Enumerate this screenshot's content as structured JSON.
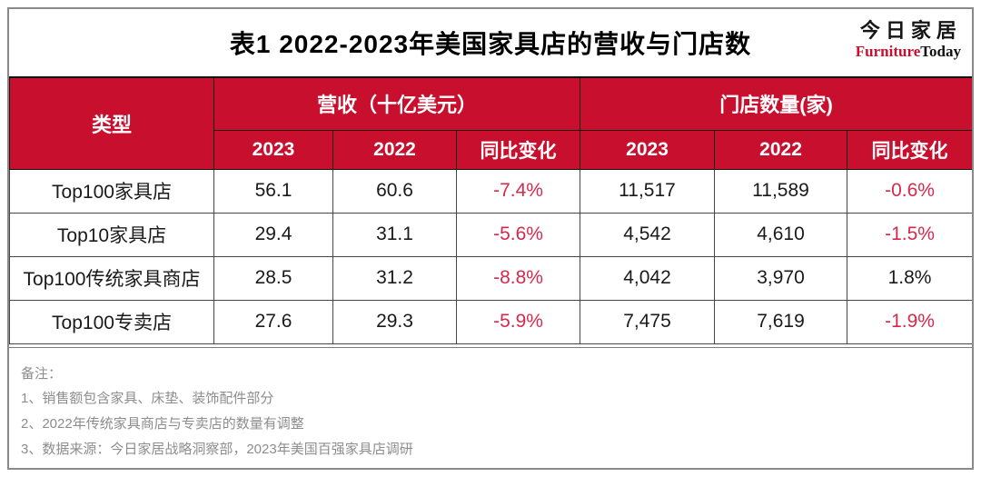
{
  "header": {
    "title": "表1  2022-2023年美国家具店的营收与门店数",
    "logo": {
      "chinese": "今日家居",
      "english_red": "Furniture",
      "english_black": "Today"
    }
  },
  "table": {
    "type_header": "类型",
    "groups": [
      {
        "label": "营收（十亿美元）"
      },
      {
        "label": "门店数量(家)"
      }
    ],
    "subheaders": [
      "2023",
      "2022",
      "同比变化",
      "2023",
      "2022",
      "同比变化"
    ],
    "rows": [
      {
        "type": "Top100家具店",
        "revenue_2023": "56.1",
        "revenue_2022": "60.6",
        "revenue_change": "-7.4%",
        "stores_2023": "11,517",
        "stores_2022": "11,589",
        "stores_change": "-0.6%"
      },
      {
        "type": "Top10家具店",
        "revenue_2023": "29.4",
        "revenue_2022": "31.1",
        "revenue_change": "-5.6%",
        "stores_2023": "4,542",
        "stores_2022": "4,610",
        "stores_change": "-1.5%"
      },
      {
        "type": "Top100传统家具商店",
        "revenue_2023": "28.5",
        "revenue_2022": "31.2",
        "revenue_change": "-8.8%",
        "stores_2023": "4,042",
        "stores_2022": "3,970",
        "stores_change": "1.8%"
      },
      {
        "type": "Top100专卖店",
        "revenue_2023": "27.6",
        "revenue_2022": "29.3",
        "revenue_change": "-5.9%",
        "stores_2023": "7,475",
        "stores_2022": "7,619",
        "stores_change": "-1.9%"
      }
    ]
  },
  "notes": {
    "label": "备注：",
    "items": [
      "1、销售额包含家具、床垫、装饰配件部分",
      "2、2022年传统家具商店与专卖店的数量有调整",
      "3、数据来源：今日家居战略洞察部，2023年美国百强家具店调研"
    ]
  },
  "colors": {
    "header_red": "#c8102e",
    "negative_red": "#d7294b",
    "positive_black": "#1a1a1a",
    "notes_gray": "#8d8d8d"
  },
  "chart_data": {
    "type": "table",
    "title": "表1 2022-2023年美国家具店的营收与门店数",
    "column_groups": [
      "营收（十亿美元）",
      "门店数量(家)"
    ],
    "columns": [
      "类型",
      "营收2023",
      "营收2022",
      "营收同比变化",
      "门店2023",
      "门店2022",
      "门店同比变化"
    ],
    "rows": [
      [
        "Top100家具店",
        56.1,
        60.6,
        "-7.4%",
        11517,
        11589,
        "-0.6%"
      ],
      [
        "Top10家具店",
        29.4,
        31.1,
        "-5.6%",
        4542,
        4610,
        "-1.5%"
      ],
      [
        "Top100传统家具商店",
        28.5,
        31.2,
        "-8.8%",
        4042,
        3970,
        "1.8%"
      ],
      [
        "Top100专卖店",
        27.6,
        29.3,
        "-5.9%",
        7475,
        7619,
        "-1.9%"
      ]
    ],
    "notes": [
      "销售额包含家具、床垫、装饰配件部分",
      "2022年传统家具商店与专卖店的数量有调整",
      "数据来源：今日家居战略洞察部，2023年美国百强家具店调研"
    ],
    "source_brand": "今日家居 FurnitureToday"
  }
}
